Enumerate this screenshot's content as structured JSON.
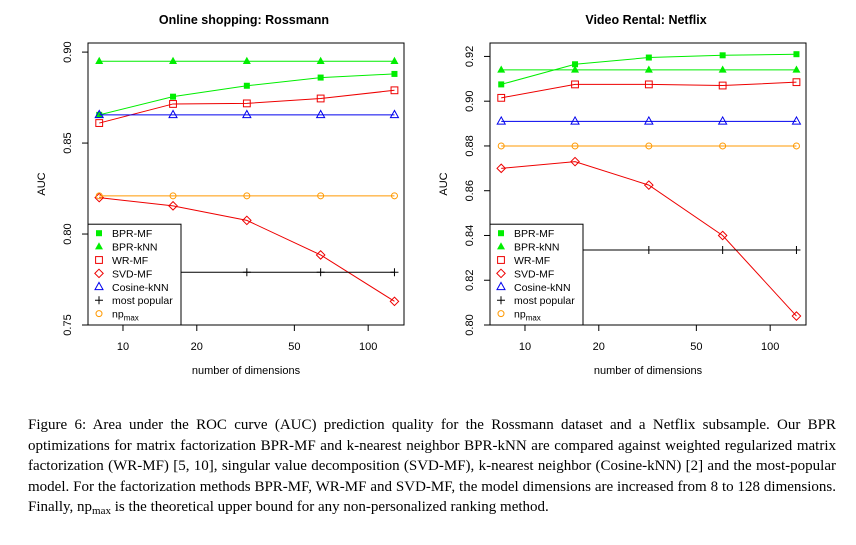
{
  "chart_data": [
    {
      "type": "line",
      "title": "Online shopping: Rossmann",
      "xlabel": "number of dimensions",
      "ylabel": "AUC",
      "x_scale": "log",
      "xlim": [
        7.2,
        140
      ],
      "ylim": [
        0.75,
        0.905
      ],
      "x": [
        8,
        16,
        32,
        64,
        128
      ],
      "xticks": [
        10,
        20,
        50,
        100
      ],
      "yticks": [
        0.75,
        0.8,
        0.85,
        0.9
      ],
      "ytick_labels": [
        "0.75",
        "0.80",
        "0.85",
        "0.90"
      ],
      "legend_position": "bottom-left",
      "series": [
        {
          "name": "BPR-MF",
          "color": "#00ee00",
          "marker": "square-filled",
          "values": [
            0.8655,
            0.8755,
            0.8815,
            0.886,
            0.888
          ]
        },
        {
          "name": "BPR-kNN",
          "color": "#00ee00",
          "marker": "triangle-filled",
          "values": [
            0.895,
            0.895,
            0.895,
            0.895,
            0.895
          ]
        },
        {
          "name": "WR-MF",
          "color": "#ee0000",
          "marker": "square-open",
          "values": [
            0.861,
            0.8715,
            0.8718,
            0.8745,
            0.879
          ]
        },
        {
          "name": "SVD-MF",
          "color": "#ee0000",
          "marker": "diamond-open",
          "values": [
            0.82,
            0.8155,
            0.8075,
            0.7885,
            0.763
          ]
        },
        {
          "name": "Cosine-kNN",
          "color": "#0000ee",
          "marker": "triangle-open",
          "values": [
            0.8655,
            0.8655,
            0.8655,
            0.8655,
            0.8655
          ]
        },
        {
          "name": "most popular",
          "color": "#000000",
          "marker": "plus",
          "values": [
            0.779,
            0.779,
            0.779,
            0.779,
            0.779
          ]
        },
        {
          "name": "np",
          "name_sub": "max",
          "color": "#ff9900",
          "marker": "circle-open",
          "values": [
            0.821,
            0.821,
            0.821,
            0.821,
            0.821
          ]
        }
      ]
    },
    {
      "type": "line",
      "title": "Video Rental: Netflix",
      "xlabel": "number of dimensions",
      "ylabel": "AUC",
      "x_scale": "log",
      "xlim": [
        7.2,
        140
      ],
      "ylim": [
        0.8,
        0.926
      ],
      "x": [
        8,
        16,
        32,
        64,
        128
      ],
      "xticks": [
        10,
        20,
        50,
        100
      ],
      "yticks": [
        0.8,
        0.82,
        0.84,
        0.86,
        0.88,
        0.9,
        0.92
      ],
      "ytick_labels": [
        "0.80",
        "0.82",
        "0.84",
        "0.86",
        "0.88",
        "0.90",
        "0.92"
      ],
      "legend_position": "bottom-left",
      "series": [
        {
          "name": "BPR-MF",
          "color": "#00ee00",
          "marker": "square-filled",
          "values": [
            0.9075,
            0.9165,
            0.9195,
            0.9205,
            0.921
          ]
        },
        {
          "name": "BPR-kNN",
          "color": "#00ee00",
          "marker": "triangle-filled",
          "values": [
            0.914,
            0.914,
            0.914,
            0.914,
            0.914
          ]
        },
        {
          "name": "WR-MF",
          "color": "#ee0000",
          "marker": "square-open",
          "values": [
            0.9015,
            0.9075,
            0.9075,
            0.907,
            0.9085
          ]
        },
        {
          "name": "SVD-MF",
          "color": "#ee0000",
          "marker": "diamond-open",
          "values": [
            0.87,
            0.873,
            0.8625,
            0.84,
            0.804
          ]
        },
        {
          "name": "Cosine-kNN",
          "color": "#0000ee",
          "marker": "triangle-open",
          "values": [
            0.891,
            0.891,
            0.891,
            0.891,
            0.891
          ]
        },
        {
          "name": "most popular",
          "color": "#000000",
          "marker": "plus",
          "values": [
            0.8335,
            0.8335,
            0.8335,
            0.8335,
            0.8335
          ]
        },
        {
          "name": "np",
          "name_sub": "max",
          "color": "#ff9900",
          "marker": "circle-open",
          "values": [
            0.88,
            0.88,
            0.88,
            0.88,
            0.88
          ]
        }
      ]
    }
  ],
  "caption": {
    "part1": "Figure 6: Area under the ROC curve (AUC) prediction quality for the Rossmann dataset and a Netflix subsample. Our BPR optimizations for matrix factorization BPR-MF and k-nearest neighbor BPR-kNN are compared against weighted regularized matrix factorization (WR-MF) [5, 10], singular value decomposition (SVD-MF), k-nearest neighbor (Cosine-kNN) [2] and the most-popular model. For the factorization methods BPR-MF, WR-MF and SVD-MF, the model dimensions are increased from 8 to 128 dimensions. Finally, np",
    "part1_sub": "max",
    "part2": " is the theoretical upper bound for any non-personalized ranking method."
  }
}
